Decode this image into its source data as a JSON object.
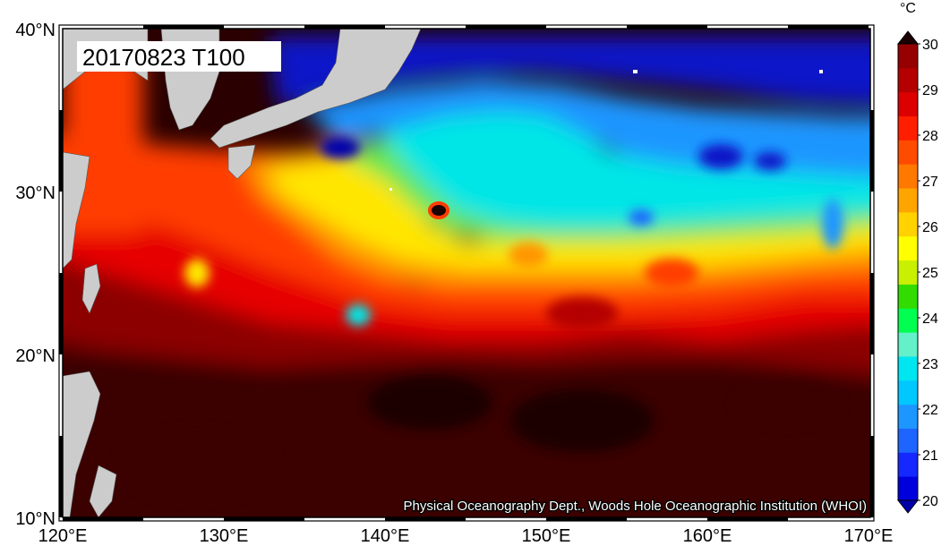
{
  "title_label": "20170823 T100",
  "credit": "Physical Oceanography Dept., Woods Hole Oceanographic Institution (WHOI)",
  "lat_ticks": [
    "40°N",
    "30°N",
    "20°N",
    "10°N"
  ],
  "lon_ticks": [
    "120°E",
    "130°E",
    "140°E",
    "150°E",
    "160°E",
    "170°E"
  ],
  "colorbar": {
    "unit": "°C",
    "min": 20,
    "max": 30,
    "step": 0.5,
    "labels": [
      "20",
      "21",
      "22",
      "23",
      "24",
      "25",
      "26",
      "27",
      "28",
      "29",
      "30"
    ],
    "colors": [
      "#0000aa",
      "#0000dd",
      "#1428ff",
      "#1e64ff",
      "#1e96ff",
      "#00c8ff",
      "#00e6f0",
      "#64f0c8",
      "#00ff50",
      "#32dc00",
      "#c8f000",
      "#ffff00",
      "#ffd200",
      "#ffa500",
      "#ff7800",
      "#ff4b00",
      "#ff1e00",
      "#dc0000",
      "#b40000",
      "#960000",
      "#6e0000"
    ]
  },
  "map": {
    "lon_range": [
      120,
      170
    ],
    "lat_range": [
      10,
      40
    ],
    "land_color": "#cccccc",
    "hot_spot_color": "#1a0000"
  }
}
